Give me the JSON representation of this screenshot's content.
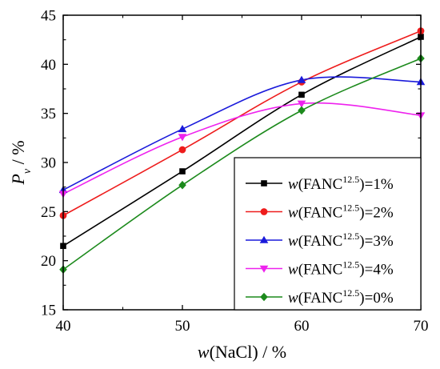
{
  "chart_data": {
    "type": "line",
    "title": "",
    "xlabel": {
      "italic": "w",
      "rest": "(NaCl) / %"
    },
    "ylabel": {
      "italic": "P",
      "sub": "v",
      "rest": " / %"
    },
    "x": [
      40,
      50,
      60,
      70
    ],
    "xlim": [
      40,
      70
    ],
    "ylim": [
      15,
      45
    ],
    "xticks": [
      "40",
      "50",
      "60",
      "70"
    ],
    "yticks": [
      "15",
      "20",
      "25",
      "30",
      "35",
      "40",
      "45"
    ],
    "grid": false,
    "legend_position": "lower-right",
    "series": [
      {
        "name": "w(FANC12.5)=1%",
        "legend": {
          "italic": "w",
          "pre": "(FANC",
          "sup": "12.5",
          "post": ")=1%"
        },
        "color": "#000000",
        "marker": "square",
        "values": [
          21.5,
          29.1,
          36.9,
          42.8
        ]
      },
      {
        "name": "w(FANC12.5)=2%",
        "legend": {
          "italic": "w",
          "pre": "(FANC",
          "sup": "12.5",
          "post": ")=2%"
        },
        "color": "#ee1c1c",
        "marker": "circle",
        "values": [
          24.6,
          31.3,
          38.2,
          43.4
        ]
      },
      {
        "name": "w(FANC12.5)=3%",
        "legend": {
          "italic": "w",
          "pre": "(FANC",
          "sup": "12.5",
          "post": ")=3%"
        },
        "color": "#1a1adb",
        "marker": "triangle-up",
        "values": [
          27.2,
          33.4,
          38.4,
          38.2
        ]
      },
      {
        "name": "w(FANC12.5)=4%",
        "legend": {
          "italic": "w",
          "pre": "(FANC",
          "sup": "12.5",
          "post": ")=4%"
        },
        "color": "#ee22ee",
        "marker": "triangle-down",
        "values": [
          26.8,
          32.6,
          36.0,
          34.8
        ]
      },
      {
        "name": "w(FANC12.5)=0%",
        "legend": {
          "italic": "w",
          "pre": "(FANC",
          "sup": "12.5",
          "post": ")=0%"
        },
        "color": "#1c8a1c",
        "marker": "diamond",
        "values": [
          19.1,
          27.7,
          35.3,
          40.6
        ]
      }
    ]
  }
}
